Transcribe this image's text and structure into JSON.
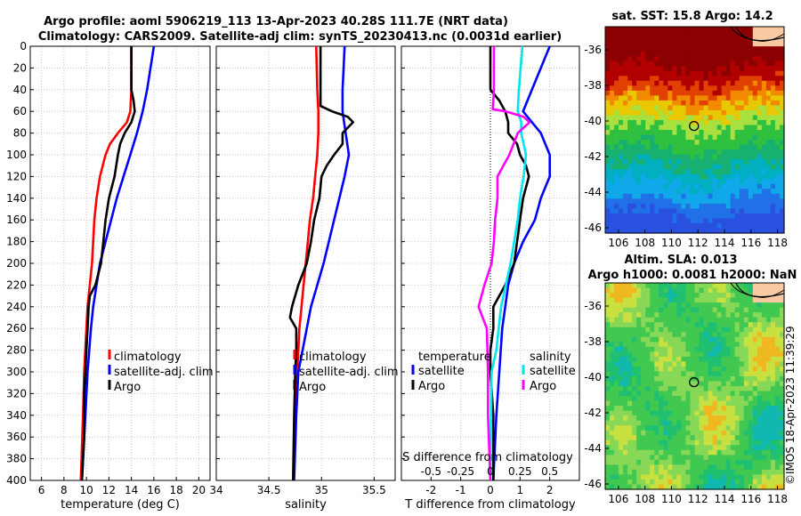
{
  "header": {
    "line1": "Argo profile: aoml 5906219_113 13-Apr-2023 40.28S 111.7E (NRT data)",
    "line2": "Climatology: CARS2009. Satellite-adj clim: synTS_20230413.nc (0.0031d earlier)"
  },
  "watermark": "©IMOS 18-Apr-2023 11:39:29",
  "colors": {
    "climatology": "#ff0000",
    "satellite": "#0000ff",
    "argo": "#000000",
    "sat_salinity": "#00e5ee",
    "argo_salinity_diff": "#ff00ff"
  },
  "chart_data": [
    {
      "type": "line",
      "name": "temperature",
      "xlabel": "temperature (deg C)",
      "xlim": [
        5,
        21
      ],
      "ylim": [
        0,
        400
      ],
      "xticks": [
        6,
        8,
        10,
        12,
        14,
        16,
        18,
        20
      ],
      "yticks": [
        0,
        20,
        40,
        60,
        80,
        100,
        120,
        140,
        160,
        180,
        200,
        220,
        240,
        260,
        280,
        300,
        320,
        340,
        360,
        380,
        400
      ],
      "legend": [
        "climatology",
        "satellite-adj. clim",
        "Argo"
      ],
      "series": [
        {
          "name": "climatology",
          "depth": [
            0,
            40,
            60,
            70,
            80,
            90,
            100,
            120,
            140,
            160,
            180,
            200,
            220,
            240,
            260,
            300,
            340,
            400
          ],
          "values": [
            14.0,
            14.0,
            13.9,
            13.6,
            12.8,
            12.1,
            11.7,
            11.2,
            10.9,
            10.7,
            10.6,
            10.5,
            10.3,
            10.1,
            10.0,
            9.8,
            9.7,
            9.5
          ]
        },
        {
          "name": "satellite-adj. clim",
          "depth": [
            0,
            20,
            40,
            60,
            80,
            100,
            120,
            140,
            160,
            180,
            200,
            220,
            240,
            260,
            300,
            340,
            400
          ],
          "values": [
            16.0,
            15.7,
            15.4,
            15.0,
            14.5,
            13.9,
            13.3,
            12.7,
            12.2,
            11.7,
            11.2,
            10.9,
            10.6,
            10.4,
            10.1,
            9.9,
            9.6
          ]
        },
        {
          "name": "Argo",
          "depth": [
            0,
            20,
            40,
            50,
            60,
            70,
            80,
            90,
            100,
            120,
            140,
            160,
            180,
            200,
            220,
            230,
            240,
            260,
            280,
            300,
            320,
            340,
            360,
            380,
            400
          ],
          "values": [
            14.0,
            14.0,
            14.0,
            14.2,
            14.3,
            14.0,
            13.4,
            13.0,
            12.8,
            12.5,
            12.0,
            11.7,
            11.5,
            11.3,
            10.8,
            10.3,
            10.2,
            10.1,
            10.0,
            9.9,
            9.8,
            9.8,
            9.8,
            9.7,
            9.6
          ]
        }
      ]
    },
    {
      "type": "line",
      "name": "salinity",
      "xlabel": "salinity",
      "xlim": [
        34.0,
        35.7
      ],
      "ylim": [
        0,
        400
      ],
      "xticks": [
        34,
        34.5,
        35,
        35.5
      ],
      "xticklabels": [
        "34",
        "34.5",
        "35",
        "35.5"
      ],
      "legend": [
        "climatology",
        "satellite-adj. clim",
        "Argo"
      ],
      "series": [
        {
          "name": "climatology",
          "depth": [
            0,
            40,
            60,
            80,
            100,
            120,
            140,
            160,
            180,
            200,
            220,
            240,
            260,
            300,
            340,
            400
          ],
          "values": [
            34.95,
            34.96,
            34.97,
            34.97,
            34.96,
            34.94,
            34.92,
            34.89,
            34.87,
            34.85,
            34.83,
            34.81,
            34.79,
            34.77,
            34.75,
            34.73
          ]
        },
        {
          "name": "satellite-adj. clim",
          "depth": [
            0,
            20,
            40,
            60,
            80,
            100,
            120,
            140,
            160,
            180,
            200,
            220,
            240,
            260,
            280,
            300,
            340,
            400
          ],
          "values": [
            35.22,
            35.21,
            35.2,
            35.2,
            35.23,
            35.26,
            35.22,
            35.17,
            35.12,
            35.07,
            35.02,
            34.96,
            34.9,
            34.86,
            34.82,
            34.78,
            34.76,
            34.74
          ]
        },
        {
          "name": "Argo",
          "depth": [
            0,
            20,
            40,
            55,
            60,
            65,
            70,
            80,
            90,
            100,
            110,
            120,
            140,
            160,
            180,
            200,
            220,
            240,
            250,
            260,
            280,
            300,
            340,
            400
          ],
          "values": [
            34.99,
            34.99,
            34.99,
            34.99,
            35.1,
            35.25,
            35.3,
            35.2,
            35.2,
            35.12,
            35.05,
            35.0,
            34.98,
            34.93,
            34.9,
            34.86,
            34.78,
            34.72,
            34.7,
            34.76,
            34.76,
            34.75,
            34.74,
            34.73
          ]
        }
      ]
    },
    {
      "type": "line",
      "name": "difference",
      "xlabel": "T difference from climatology",
      "top_xlabel": "S difference from climatology",
      "xlim": [
        -3,
        3
      ],
      "ylim": [
        0,
        400
      ],
      "xticks": [
        -2,
        -1,
        0,
        1,
        2
      ],
      "xticklabels": [
        "-2",
        "-1",
        "0",
        "1",
        "2"
      ],
      "top_xticks": [
        -0.5,
        -0.25,
        0,
        0.25,
        0.5
      ],
      "top_xticklabels": [
        "-0.5",
        "-0.25",
        "0",
        "0.25",
        "0.5"
      ],
      "legend": [
        "temperature",
        "satellite",
        "Argo",
        "salinity",
        "satellite",
        "Argo"
      ],
      "series": [
        {
          "name": "satellite T diff",
          "color": "#0000ff",
          "depth": [
            0,
            40,
            60,
            80,
            100,
            120,
            140,
            160,
            180,
            200,
            220,
            240,
            260,
            300,
            340,
            400
          ],
          "values": [
            2.0,
            1.4,
            1.1,
            1.7,
            2.0,
            2.0,
            1.7,
            1.5,
            1.1,
            0.8,
            0.6,
            0.5,
            0.4,
            0.3,
            0.2,
            0.1
          ]
        },
        {
          "name": "Argo T diff",
          "color": "#000000",
          "depth": [
            0,
            40,
            50,
            60,
            70,
            80,
            90,
            100,
            110,
            120,
            140,
            160,
            180,
            200,
            220,
            240,
            260,
            280,
            300,
            340,
            400
          ],
          "values": [
            0.0,
            0.0,
            0.3,
            0.5,
            0.6,
            0.6,
            0.9,
            1.0,
            1.2,
            1.3,
            1.1,
            1.0,
            0.9,
            0.8,
            0.5,
            0.1,
            0.1,
            0.0,
            0.0,
            0.1,
            0.1
          ]
        },
        {
          "name": "satellite S diff",
          "color": "#00e5ee",
          "depth": [
            0,
            40,
            60,
            70,
            80,
            100,
            120,
            140,
            160,
            180,
            200,
            220,
            240,
            260,
            280,
            300,
            340,
            400
          ],
          "values": [
            0.27,
            0.24,
            0.23,
            0.26,
            0.26,
            0.3,
            0.28,
            0.25,
            0.23,
            0.2,
            0.17,
            0.13,
            0.09,
            0.07,
            0.05,
            0.01,
            0.005,
            0.0
          ]
        },
        {
          "name": "Argo S diff",
          "color": "#ff00ff",
          "depth": [
            0,
            40,
            58,
            60,
            65,
            70,
            80,
            100,
            120,
            140,
            160,
            180,
            200,
            220,
            240,
            260,
            300,
            340,
            400
          ],
          "values": [
            0.03,
            0.03,
            0.02,
            0.13,
            0.28,
            0.33,
            0.23,
            0.16,
            0.06,
            0.06,
            0.04,
            0.03,
            0.01,
            -0.05,
            -0.1,
            -0.03,
            -0.02,
            -0.02,
            0.0
          ]
        }
      ]
    },
    {
      "type": "heatmap",
      "name": "sst_map",
      "title": "sat. SST: 15.8 Argo: 14.2",
      "xlim": [
        105,
        118.5
      ],
      "ylim": [
        -46.3,
        -34.7
      ],
      "xticks": [
        106,
        108,
        110,
        112,
        114,
        116,
        118
      ],
      "yticks": [
        -36,
        -38,
        -40,
        -42,
        -44,
        -46
      ],
      "argo_position": [
        111.7,
        -40.28
      ]
    },
    {
      "type": "heatmap",
      "name": "sla_map",
      "title": "Altim. SLA: 0.013",
      "title2": "Argo h1000: 0.0081 h2000: NaN",
      "xlim": [
        105,
        118.5
      ],
      "ylim": [
        -46.3,
        -34.7
      ],
      "xticks": [
        106,
        108,
        110,
        112,
        114,
        116,
        118
      ],
      "yticks": [
        -36,
        -38,
        -40,
        -42,
        -44,
        -46
      ],
      "argo_position": [
        111.7,
        -40.28
      ]
    }
  ]
}
